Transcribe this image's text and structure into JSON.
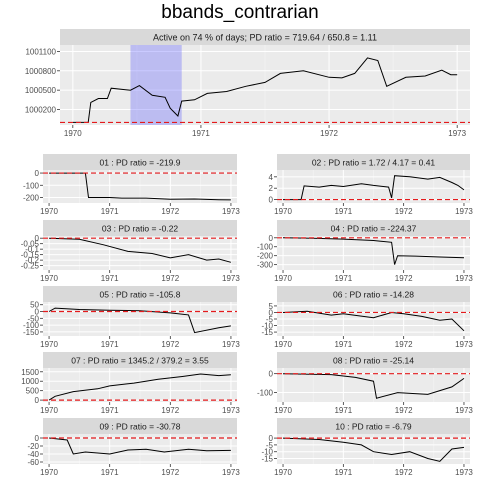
{
  "title": "bbands_contrarian",
  "chart_data": [
    {
      "type": "line",
      "strip": "Active on 74 % of days; PD ratio =  719.64 / 650.8 = 1.11",
      "x_ticks": [
        "1970",
        "1971",
        "1972",
        "1973"
      ],
      "y_ticks": [
        1000200,
        1000500,
        1000800,
        1001100
      ],
      "ylim": [
        999960,
        1001200
      ],
      "reference_line": 1000000,
      "shaded_region": {
        "x_start": 1970.45,
        "x_end": 1970.85
      },
      "series": [
        {
          "points": [
            [
              1970.0,
              1000000
            ],
            [
              1970.12,
              1000000
            ],
            [
              1970.14,
              1000310
            ],
            [
              1970.2,
              1000370
            ],
            [
              1970.27,
              1000370
            ],
            [
              1970.3,
              1000530
            ],
            [
              1970.45,
              1000500
            ],
            [
              1970.52,
              1000570
            ],
            [
              1970.62,
              1000420
            ],
            [
              1970.72,
              1000390
            ],
            [
              1970.76,
              1000220
            ],
            [
              1970.82,
              1000100
            ],
            [
              1970.85,
              1000330
            ],
            [
              1970.95,
              1000350
            ],
            [
              1971.05,
              1000450
            ],
            [
              1971.2,
              1000480
            ],
            [
              1971.35,
              1000560
            ],
            [
              1971.5,
              1000620
            ],
            [
              1971.62,
              1000760
            ],
            [
              1971.8,
              1000800
            ],
            [
              1972.0,
              1000700
            ],
            [
              1972.1,
              1000690
            ],
            [
              1972.2,
              1000760
            ],
            [
              1972.3,
              1001000
            ],
            [
              1972.38,
              1000960
            ],
            [
              1972.45,
              1000560
            ],
            [
              1972.6,
              1000700
            ],
            [
              1972.75,
              1000720
            ],
            [
              1972.88,
              1000810
            ],
            [
              1972.95,
              1000740
            ],
            [
              1973.0,
              1000740
            ]
          ]
        }
      ]
    },
    {
      "type": "line",
      "strip": "01 : PD ratio =  -219.9",
      "x_ticks": [
        "1970",
        "1971",
        "1972",
        "1973"
      ],
      "y_ticks": [
        0,
        -100,
        -200
      ],
      "ylim": [
        -245,
        25
      ],
      "reference_line": 0,
      "series": [
        {
          "points": [
            [
              1970.0,
              0
            ],
            [
              1970.6,
              0
            ],
            [
              1970.65,
              -200
            ],
            [
              1971.0,
              -200
            ],
            [
              1971.2,
              -205
            ],
            [
              1971.6,
              -205
            ],
            [
              1972.0,
              -215
            ],
            [
              1972.4,
              -212
            ],
            [
              1972.8,
              -218
            ],
            [
              1973.0,
              -220
            ]
          ]
        }
      ]
    },
    {
      "type": "line",
      "strip": "02 : PD ratio =  1.72 / 4.17 = 0.41",
      "x_ticks": [
        "1970",
        "1971",
        "1972",
        "1973"
      ],
      "y_ticks": [
        4,
        2,
        0
      ],
      "ylim": [
        -0.6,
        5.2
      ],
      "reference_line": 0,
      "series": [
        {
          "points": [
            [
              1970.0,
              0
            ],
            [
              1970.3,
              0
            ],
            [
              1970.35,
              2.4
            ],
            [
              1970.6,
              2.2
            ],
            [
              1970.8,
              2.5
            ],
            [
              1971.0,
              2.3
            ],
            [
              1971.3,
              2.8
            ],
            [
              1971.5,
              2.5
            ],
            [
              1971.75,
              2.2
            ],
            [
              1971.8,
              0.3
            ],
            [
              1971.85,
              4.2
            ],
            [
              1972.1,
              4.0
            ],
            [
              1972.4,
              3.6
            ],
            [
              1972.6,
              3.9
            ],
            [
              1972.8,
              3.0
            ],
            [
              1972.9,
              2.5
            ],
            [
              1973.0,
              1.7
            ]
          ]
        }
      ]
    },
    {
      "type": "line",
      "strip": "03 : PD ratio =  -0.22",
      "x_ticks": [
        "1970",
        "1971",
        "1972",
        "1973"
      ],
      "y_ticks": [
        0.0,
        -0.05,
        -0.1,
        -0.15,
        -0.2,
        -0.25
      ],
      "ylim": [
        -0.29,
        0.02
      ],
      "reference_line": 0,
      "series": [
        {
          "points": [
            [
              1970.0,
              0
            ],
            [
              1970.5,
              -0.01
            ],
            [
              1970.9,
              -0.06
            ],
            [
              1971.3,
              -0.12
            ],
            [
              1971.7,
              -0.14
            ],
            [
              1972.0,
              -0.18
            ],
            [
              1972.3,
              -0.15
            ],
            [
              1972.6,
              -0.2
            ],
            [
              1972.8,
              -0.19
            ],
            [
              1973.0,
              -0.22
            ]
          ]
        }
      ]
    },
    {
      "type": "line",
      "strip": "04 : PD ratio =  -224.37",
      "x_ticks": [
        "1970",
        "1971",
        "1972",
        "1973"
      ],
      "y_ticks": [
        0,
        -100,
        -200,
        -300
      ],
      "ylim": [
        -360,
        20
      ],
      "reference_line": 0,
      "series": [
        {
          "points": [
            [
              1970.0,
              0
            ],
            [
              1970.5,
              -5
            ],
            [
              1971.0,
              -15
            ],
            [
              1971.5,
              -30
            ],
            [
              1971.8,
              -50
            ],
            [
              1971.85,
              -300
            ],
            [
              1971.9,
              -200
            ],
            [
              1972.2,
              -205
            ],
            [
              1972.6,
              -215
            ],
            [
              1973.0,
              -224
            ]
          ]
        }
      ]
    },
    {
      "type": "line",
      "strip": "05 : PD ratio =  -105.8",
      "x_ticks": [
        "1970",
        "1971",
        "1972",
        "1973"
      ],
      "y_ticks": [
        50,
        0,
        -50,
        -100,
        -150
      ],
      "ylim": [
        -180,
        70
      ],
      "reference_line": 0,
      "series": [
        {
          "points": [
            [
              1970.0,
              0
            ],
            [
              1970.1,
              25
            ],
            [
              1970.5,
              15
            ],
            [
              1971.0,
              10
            ],
            [
              1971.5,
              5
            ],
            [
              1972.0,
              -10
            ],
            [
              1972.3,
              -25
            ],
            [
              1972.4,
              -155
            ],
            [
              1972.8,
              -120
            ],
            [
              1973.0,
              -106
            ]
          ]
        }
      ]
    },
    {
      "type": "line",
      "strip": "06 : PD ratio =  -14.28",
      "x_ticks": [
        "1970",
        "1971",
        "1972",
        "1973"
      ],
      "y_ticks": [
        5,
        0,
        -5,
        -10,
        -15
      ],
      "ylim": [
        -18,
        8
      ],
      "reference_line": 0,
      "series": [
        {
          "points": [
            [
              1970.0,
              0
            ],
            [
              1970.4,
              1
            ],
            [
              1970.8,
              -2
            ],
            [
              1971.0,
              -1
            ],
            [
              1971.5,
              -4
            ],
            [
              1971.8,
              0
            ],
            [
              1972.0,
              -1
            ],
            [
              1972.3,
              -3
            ],
            [
              1972.6,
              -6
            ],
            [
              1972.8,
              -5
            ],
            [
              1973.0,
              -14
            ]
          ]
        }
      ]
    },
    {
      "type": "line",
      "strip": "07 : PD ratio =  1345.2 / 379.2 = 3.55",
      "x_ticks": [
        "1970",
        "1971",
        "1972",
        "1973"
      ],
      "y_ticks": [
        1500,
        1000,
        500,
        0
      ],
      "ylim": [
        -100,
        1700
      ],
      "reference_line": 0,
      "series": [
        {
          "points": [
            [
              1970.0,
              0
            ],
            [
              1970.1,
              200
            ],
            [
              1970.4,
              450
            ],
            [
              1970.8,
              600
            ],
            [
              1971.0,
              750
            ],
            [
              1971.4,
              900
            ],
            [
              1971.8,
              1100
            ],
            [
              1972.2,
              1250
            ],
            [
              1972.5,
              1380
            ],
            [
              1972.8,
              1300
            ],
            [
              1973.0,
              1345
            ]
          ]
        }
      ]
    },
    {
      "type": "line",
      "strip": "08 : PD ratio =  -25.14",
      "x_ticks": [
        "1970",
        "1971",
        "1972",
        "1973"
      ],
      "y_ticks": [
        0,
        -100
      ],
      "ylim": [
        -150,
        30
      ],
      "reference_line": 0,
      "series": [
        {
          "points": [
            [
              1970.0,
              0
            ],
            [
              1970.8,
              -5
            ],
            [
              1971.2,
              -20
            ],
            [
              1971.5,
              -40
            ],
            [
              1971.55,
              -130
            ],
            [
              1971.9,
              -100
            ],
            [
              1972.4,
              -110
            ],
            [
              1972.8,
              -70
            ],
            [
              1973.0,
              -25
            ]
          ]
        }
      ]
    },
    {
      "type": "line",
      "strip": "09 : PD ratio =  -30.78",
      "x_ticks": [
        "1970",
        "1971",
        "1972",
        "1973"
      ],
      "y_ticks": [
        0,
        -20,
        -40,
        -60
      ],
      "ylim": [
        -65,
        10
      ],
      "reference_line": 0,
      "series": [
        {
          "points": [
            [
              1970.0,
              0
            ],
            [
              1970.3,
              -5
            ],
            [
              1970.4,
              -40
            ],
            [
              1970.6,
              -35
            ],
            [
              1971.0,
              -40
            ],
            [
              1971.3,
              -30
            ],
            [
              1971.6,
              -28
            ],
            [
              1971.9,
              -35
            ],
            [
              1972.3,
              -28
            ],
            [
              1972.6,
              -32
            ],
            [
              1973.0,
              -31
            ]
          ]
        }
      ]
    },
    {
      "type": "line",
      "strip": "10 : PD ratio =  -6.79",
      "x_ticks": [
        "1970",
        "1971",
        "1972",
        "1973"
      ],
      "y_ticks": [
        0,
        -5,
        -10,
        -15
      ],
      "ylim": [
        -19,
        3
      ],
      "reference_line": 0,
      "series": [
        {
          "points": [
            [
              1970.0,
              0
            ],
            [
              1970.6,
              -1
            ],
            [
              1971.0,
              -3
            ],
            [
              1971.3,
              -5
            ],
            [
              1971.5,
              -10
            ],
            [
              1971.8,
              -12
            ],
            [
              1972.1,
              -10
            ],
            [
              1972.4,
              -15
            ],
            [
              1972.6,
              -17
            ],
            [
              1972.8,
              -8
            ],
            [
              1973.0,
              -6.8
            ]
          ]
        }
      ]
    }
  ]
}
